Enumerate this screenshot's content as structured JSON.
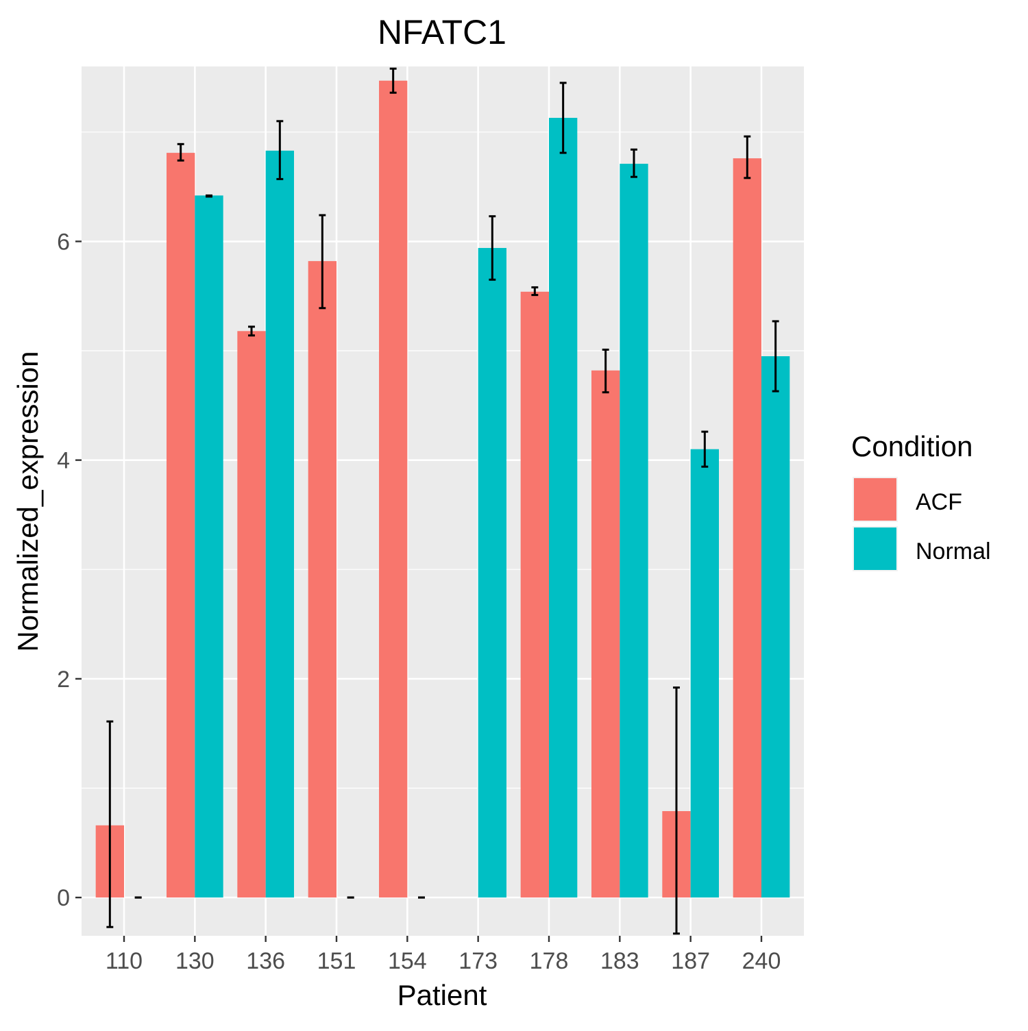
{
  "chart_data": {
    "type": "bar",
    "title": "NFATC1",
    "xlabel": "Patient",
    "ylabel": "Normalized_expression",
    "categories": [
      "110",
      "130",
      "136",
      "151",
      "154",
      "173",
      "178",
      "183",
      "187",
      "240"
    ],
    "ylim": [
      -0.35,
      7.6
    ],
    "yticks": [
      0,
      2,
      4,
      6
    ],
    "grid": true,
    "legend": {
      "title": "Condition",
      "position": "right"
    },
    "series": [
      {
        "name": "ACF",
        "color": "#F8766D",
        "values": [
          0.66,
          6.81,
          5.18,
          5.82,
          7.47,
          null,
          5.54,
          4.82,
          0.79,
          6.76
        ],
        "err_low": [
          -0.27,
          6.74,
          5.14,
          5.39,
          7.36,
          null,
          5.51,
          4.62,
          -0.33,
          6.58
        ],
        "err_high": [
          1.61,
          6.89,
          5.22,
          6.24,
          7.58,
          null,
          5.58,
          5.01,
          1.92,
          6.96
        ]
      },
      {
        "name": "Normal",
        "color": "#00BFC4",
        "values": [
          0,
          6.42,
          6.83,
          0,
          0,
          5.94,
          7.13,
          6.71,
          4.1,
          4.95
        ],
        "err_low": [
          0,
          6.41,
          6.57,
          0,
          0,
          5.65,
          6.81,
          6.59,
          3.94,
          4.63
        ],
        "err_high": [
          0,
          6.42,
          7.1,
          0,
          0,
          6.23,
          7.45,
          6.84,
          4.26,
          5.27
        ]
      }
    ]
  }
}
